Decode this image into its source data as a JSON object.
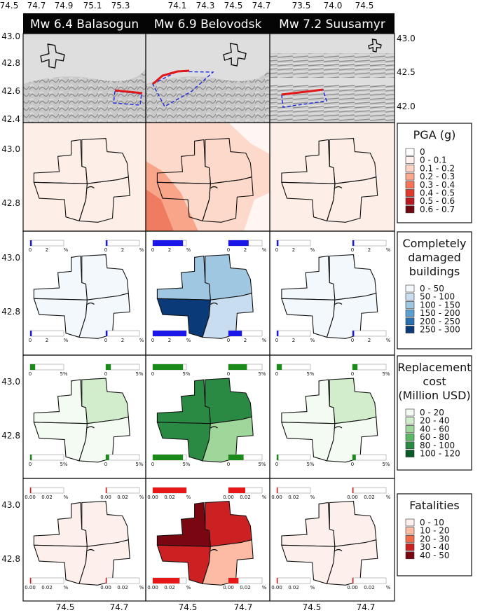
{
  "columns": [
    {
      "title": "Mw 6.4 Balasogun",
      "top_ticks": [
        "74.5",
        "74.7",
        "74.9",
        "75.1",
        "75.3"
      ],
      "bottom_ticks": [
        "74.5",
        "74.7"
      ]
    },
    {
      "title": "Mw 6.9 Belovodsk",
      "top_ticks": [
        "74.1",
        "74.3",
        "74.5",
        "74.7"
      ],
      "bottom_ticks": [
        "74.5",
        "74.7"
      ]
    },
    {
      "title": "Mw 7.2 Suusamyr",
      "top_ticks": [
        "73.5",
        "74.0",
        "74.5"
      ],
      "bottom_ticks": [
        "74.5",
        "74.7"
      ]
    }
  ],
  "row1_left_ticks": [
    "43.0",
    "42.8",
    "42.6",
    "42.4"
  ],
  "row1_right_ticks": [
    "43.0",
    "42.5",
    "42.0"
  ],
  "city_left_ticks": [
    "43.0",
    "42.8"
  ],
  "legends": {
    "pga": {
      "title": [
        "PGA (g)"
      ],
      "items": [
        "0",
        "0 - 0.1",
        "0.1 - 0.2",
        "0.2 - 0.3",
        "0.3 - 0.4",
        "0.4 - 0.5",
        "0.5 - 0.6",
        "0.6 - 0.7"
      ],
      "colors": [
        "#ffffff",
        "#fff2ee",
        "#fdd3c4",
        "#fca98f",
        "#f5745a",
        "#e03a2c",
        "#b41a1f",
        "#6e0910"
      ]
    },
    "damage": {
      "title": [
        "Completely",
        "damaged",
        "buildings"
      ],
      "items": [
        "0 - 50",
        "50 - 100",
        "100 - 150",
        "150 - 200",
        "200 - 250",
        "250 - 300"
      ],
      "colors": [
        "#f3f8fd",
        "#c9ddf0",
        "#9fc7e2",
        "#5a9fcf",
        "#2b70b0",
        "#0b3a78"
      ]
    },
    "cost": {
      "title": [
        "Replacement",
        "cost",
        "(Million USD)"
      ],
      "items": [
        "0 - 20",
        "20 - 40",
        "40 - 60",
        "60 - 80",
        "80 - 100",
        "100 - 120"
      ],
      "colors": [
        "#f3fbf2",
        "#d2edcc",
        "#9fd69a",
        "#5cb866",
        "#2a8a43",
        "#0a5a28"
      ]
    },
    "fatal": {
      "title": [
        "Fatalities"
      ],
      "items": [
        "0 - 10",
        "10 - 20",
        "20 - 30",
        "30 - 40",
        "40 - 50"
      ],
      "colors": [
        "#fdf0ec",
        "#fcbba2",
        "#f26b4a",
        "#cc2123",
        "#7a0611"
      ]
    }
  },
  "bar_labels": {
    "damage": [
      "0",
      "2",
      "%"
    ],
    "cost": [
      "0",
      "5%"
    ],
    "fatal": [
      "0.00",
      "0.02",
      "%"
    ]
  },
  "district_data": {
    "damage": [
      {
        "NW": 0,
        "NE": 0,
        "SW": 0,
        "SE": 0,
        "bars": [
          0.05,
          0.05,
          0.05,
          0.05
        ]
      },
      {
        "NW": 2,
        "NE": 2,
        "SW": 5,
        "SE": 1,
        "bars": [
          0.9,
          0.6,
          1.0,
          0.4
        ]
      },
      {
        "NW": 0,
        "NE": 0,
        "SW": 0,
        "SE": 0,
        "bars": [
          0.05,
          0.05,
          0.05,
          0.05
        ]
      }
    ],
    "cost": [
      {
        "NW": 0,
        "NE": 1,
        "SW": 0,
        "SE": 0,
        "bars": [
          0.15,
          0.15,
          0.05,
          0.1
        ]
      },
      {
        "NW": 4,
        "NE": 4,
        "SW": 4,
        "SE": 2,
        "bars": [
          0.9,
          0.55,
          0.9,
          0.45
        ]
      },
      {
        "NW": 0,
        "NE": 1,
        "SW": 0,
        "SE": 0,
        "bars": [
          0.15,
          0.15,
          0.05,
          0.1
        ]
      }
    ],
    "fatal": [
      {
        "NW": 0,
        "NE": 0,
        "SW": 0,
        "SE": 0,
        "bars": [
          0.03,
          0.03,
          0.03,
          0.03
        ]
      },
      {
        "NW": 4,
        "NE": 3,
        "SW": 3,
        "SE": 1,
        "bars": [
          1.0,
          0.5,
          0.8,
          0.3
        ]
      },
      {
        "NW": 0,
        "NE": 0,
        "SW": 0,
        "SE": 0,
        "bars": [
          0.03,
          0.03,
          0.03,
          0.03
        ]
      }
    ]
  }
}
